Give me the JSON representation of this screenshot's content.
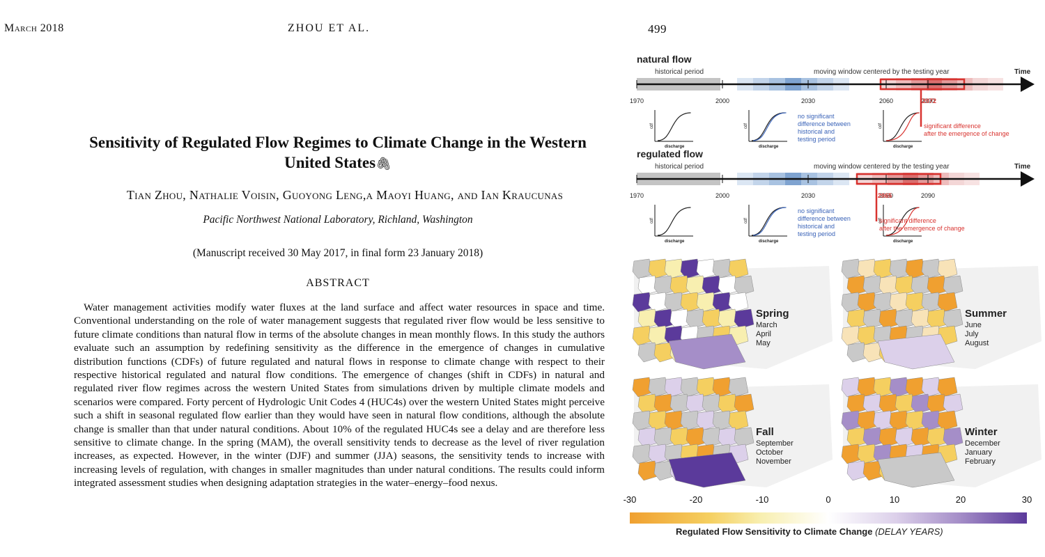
{
  "header": {
    "left": "March 2018",
    "center": "ZHOU ET AL.",
    "page": "499"
  },
  "article": {
    "title": "Sensitivity of Regulated Flow Regimes to Climate Change in the Western United States",
    "authors": "Tian Zhou, Nathalie Voisin, Guoyong Leng,a Maoyi Huang, and Ian Kraucunas",
    "affiliation": "Pacific Northwest National Laboratory, Richland, Washington",
    "manuscript": "(Manuscript received 30 May 2017, in final form 23 January 2018)",
    "abstract_heading": "ABSTRACT",
    "abstract": "Water management activities modify water fluxes at the land surface and affect water resources in space and time. Conventional understanding on the role of water management suggests that regulated river flow would be less sensitive to future climate conditions than natural flow in terms of the absolute changes in mean monthly flows. In this study the authors evaluate such an assumption by redefining sensitivity as the difference in the emergence of changes in cumulative distribution functions (CDFs) of future regulated and natural flows in response to climate change with respect to their respective historical regulated and natural flow conditions. The emergence of changes (shift in CDFs) in natural and regulated river flow regimes across the western United States from simulations driven by multiple climate models and scenarios were compared. Forty percent of Hydrologic Unit Codes 4 (HUC4s) over the western United States might perceive such a shift in seasonal regulated flow earlier than they would have seen in natural flow conditions, although the absolute change is smaller than that under natural conditions. About 10% of the regulated HUC4s see a delay and are therefore less sensitive to climate change. In the spring (MAM), the overall sensitivity tends to decrease as the level of river regulation increases, as expected. However, in the winter (DJF) and summer (JJA) seasons, the sensitivity tends to increase with increasing levels of regulation, with changes in smaller magnitudes than under natural conditions. The results could inform integrated assessment studies when designing adaptation strategies in the water–energy–food nexus."
  },
  "figure": {
    "timelines": [
      {
        "title": "natural flow",
        "historical": "historical period",
        "moving": "moving window centered by the testing year",
        "time": "Time",
        "years": [
          "1970",
          "2000",
          "2030",
          "2060",
          "2090"
        ],
        "highlight_year": "2072",
        "nosig": [
          "no significant",
          "difference between",
          "historical and",
          "testing period"
        ],
        "sig": [
          "significant difference",
          "after the emergence of change"
        ],
        "cdf": "cdf",
        "discharge": "discharge"
      },
      {
        "title": "regulated flow",
        "historical": "historical period",
        "moving": "moving window centered by the testing year",
        "time": "Time",
        "years": [
          "1970",
          "2000",
          "2030",
          "2060",
          "2090"
        ],
        "highlight_year": "2065",
        "nosig": [
          "no significant",
          "difference between",
          "historical and",
          "testing period"
        ],
        "sig": [
          "significant difference",
          "after the emergence of change"
        ],
        "cdf": "cdf",
        "discharge": "discharge"
      }
    ],
    "maps": [
      {
        "season": "Spring",
        "months": [
          "March",
          "April",
          "May"
        ]
      },
      {
        "season": "Summer",
        "months": [
          "June",
          "July",
          "August"
        ]
      },
      {
        "season": "Fall",
        "months": [
          "September",
          "October",
          "November"
        ]
      },
      {
        "season": "Winter",
        "months": [
          "December",
          "January",
          "February"
        ]
      }
    ],
    "colorbar": {
      "ticks": [
        "-30",
        "-20",
        "-10",
        "0",
        "10",
        "20",
        "30"
      ],
      "title": "Regulated Flow Sensitivity to Climate Change",
      "units": "(DELAY YEARS)"
    }
  }
}
